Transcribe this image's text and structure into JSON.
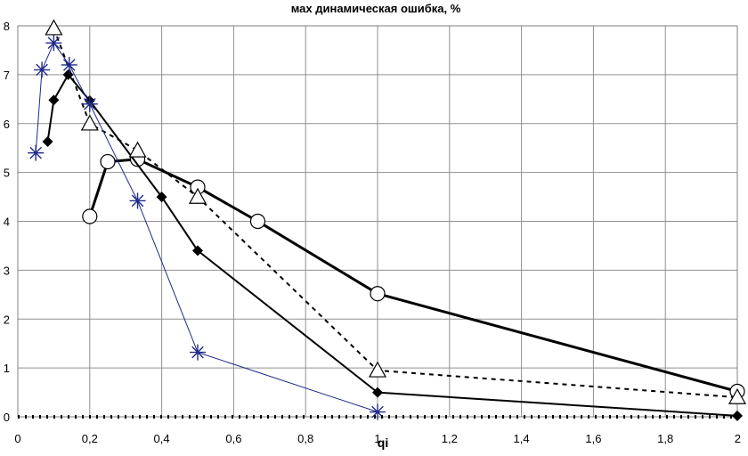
{
  "chart_data": {
    "type": "line",
    "title": "мах динамическая ошибка, %",
    "xlabel": "qi",
    "ylabel": "",
    "xlim": [
      0,
      2
    ],
    "ylim": [
      0,
      8
    ],
    "grid": true,
    "legend": "none",
    "x_ticks": [
      "0",
      "0,2",
      "0,4",
      "0,6",
      "0,8",
      "1",
      "1,2",
      "1,4",
      "1,6",
      "1,8",
      "2"
    ],
    "y_ticks": [
      "0",
      "1",
      "2",
      "3",
      "4",
      "5",
      "6",
      "7",
      "8"
    ],
    "series": [
      {
        "marker": "circle",
        "line": "solid-thick",
        "color": "#000000",
        "points": [
          [
            0.2,
            4.1
          ],
          [
            0.25,
            5.22
          ],
          [
            0.333,
            5.27
          ],
          [
            0.5,
            4.7
          ],
          [
            0.667,
            4.0
          ],
          [
            1.0,
            2.52
          ],
          [
            2.0,
            0.52
          ]
        ]
      },
      {
        "marker": "diamond",
        "line": "solid",
        "color": "#000000",
        "points": [
          [
            0.083,
            5.63
          ],
          [
            0.1,
            6.48
          ],
          [
            0.14,
            7.0
          ],
          [
            0.2,
            6.47
          ],
          [
            0.4,
            4.5
          ],
          [
            0.5,
            3.4
          ],
          [
            1.0,
            0.5
          ],
          [
            2.0,
            0.02
          ]
        ]
      },
      {
        "marker": "triangle",
        "line": "dashed",
        "color": "#000000",
        "points": [
          [
            0.1,
            7.95
          ],
          [
            0.2,
            6.0
          ],
          [
            0.333,
            5.45
          ],
          [
            0.5,
            4.5
          ],
          [
            1.0,
            0.95
          ],
          [
            2.0,
            0.4
          ]
        ]
      },
      {
        "marker": "asterisk",
        "line": "thin",
        "color": "#1f2a8a",
        "points": [
          [
            0.05,
            5.4
          ],
          [
            0.067,
            7.1
          ],
          [
            0.1,
            7.65
          ],
          [
            0.143,
            7.2
          ],
          [
            0.2,
            6.4
          ],
          [
            0.333,
            4.42
          ],
          [
            0.5,
            1.32
          ],
          [
            1.0,
            0.1
          ]
        ]
      },
      {
        "marker": "none",
        "line": "dotted-thick",
        "color": "#000000",
        "points": [
          [
            0,
            0
          ],
          [
            2.0,
            0
          ]
        ]
      }
    ]
  }
}
